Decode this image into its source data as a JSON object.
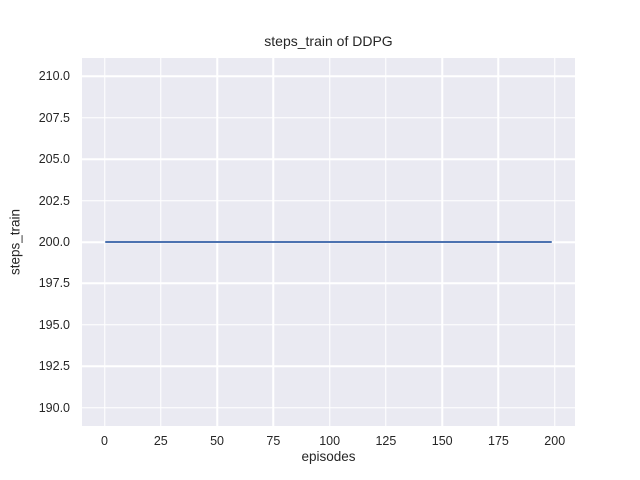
{
  "chart_data": {
    "type": "line",
    "title": "steps_train of DDPG",
    "xlabel": "episodes",
    "ylabel": "steps_train",
    "xlim": [
      -10,
      209
    ],
    "ylim": [
      188.9,
      211.1
    ],
    "grid": true,
    "legend_position": "none",
    "x_ticks": [
      {
        "value": 0,
        "label": "0"
      },
      {
        "value": 25,
        "label": "25"
      },
      {
        "value": 50,
        "label": "50"
      },
      {
        "value": 75,
        "label": "75"
      },
      {
        "value": 100,
        "label": "100"
      },
      {
        "value": 125,
        "label": "125"
      },
      {
        "value": 150,
        "label": "150"
      },
      {
        "value": 175,
        "label": "175"
      },
      {
        "value": 200,
        "label": "200"
      }
    ],
    "y_ticks": [
      {
        "value": 190.0,
        "label": "190.0"
      },
      {
        "value": 192.5,
        "label": "192.5"
      },
      {
        "value": 195.0,
        "label": "195.0"
      },
      {
        "value": 197.5,
        "label": "197.5"
      },
      {
        "value": 200.0,
        "label": "200.0"
      },
      {
        "value": 202.5,
        "label": "202.5"
      },
      {
        "value": 205.0,
        "label": "205.0"
      },
      {
        "value": 207.5,
        "label": "207.5"
      },
      {
        "value": 210.0,
        "label": "210.0"
      }
    ],
    "series": [
      {
        "name": "steps_train",
        "color": "#4C72B0",
        "x": [
          0,
          199
        ],
        "y": [
          200,
          200
        ],
        "description": "constant horizontal line at steps_train = 200 from episode 0 to 199"
      }
    ],
    "colors": {
      "figure_bg": "#FFFFFF",
      "plot_bg": "#EAEAF2",
      "grid": "#FFFFFF",
      "text": "#262626",
      "line": "#4C72B0"
    }
  }
}
